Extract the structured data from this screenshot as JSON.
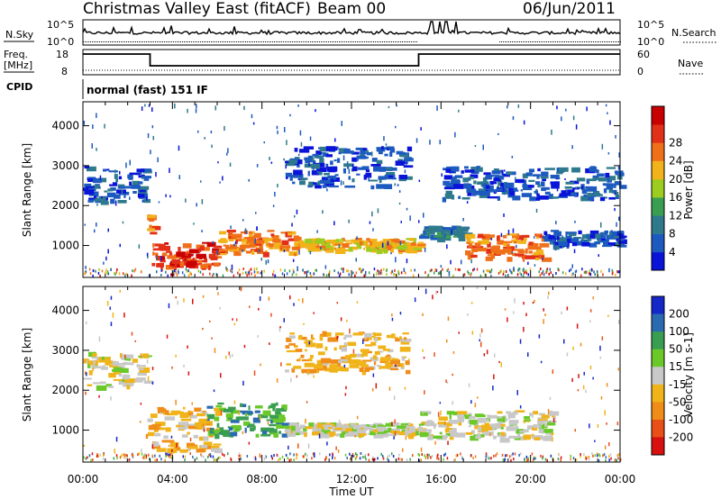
{
  "header": {
    "title": "Christmas Valley East (fitACF)",
    "beam": "Beam 00",
    "date": "06/Jun/2011"
  },
  "nsky_panel": {
    "label": "N.Sky",
    "ytick_top": "10^5",
    "ytick_bottom": "10^0",
    "right_label": "N.Search",
    "right_tick_top": "10^5",
    "right_tick_bottom": "10^0"
  },
  "freq_panel": {
    "label_line1": "Freq.",
    "label_line2": "[MHz]",
    "ytick_top": "18",
    "ytick_bottom": "8",
    "right_label": "Nave",
    "right_tick_top": "60",
    "right_tick_bottom": "0"
  },
  "cpid_panel": {
    "label": "CPID",
    "text": "normal (fast) 151 IF"
  },
  "x_axis": {
    "label": "Time UT",
    "ticks": [
      "00:00",
      "04:00",
      "08:00",
      "12:00",
      "16:00",
      "20:00",
      "00:00"
    ]
  },
  "chart_data": [
    {
      "type": "heatmap",
      "name": "power",
      "ylabel": "Slant Range [km]",
      "yticks": [
        "1000",
        "2000",
        "3000",
        "4000"
      ],
      "ylim": [
        200,
        4600
      ],
      "xlim": [
        0,
        24
      ],
      "colorbar_label": "Power [dB]",
      "colorbar_ticks": [
        "4",
        "8",
        "12",
        "16",
        "20",
        "24",
        "28"
      ],
      "colorbar_colors": [
        "#0a14d8",
        "#1d5abf",
        "#2e7a8c",
        "#3a9e52",
        "#9ccc1f",
        "#f2b21a",
        "#f0701a",
        "#e23018",
        "#c80000"
      ],
      "regions": [
        {
          "t0": 0.0,
          "t1": 2.8,
          "r0": 2100,
          "r1": 3000,
          "level": 1
        },
        {
          "t0": 2.8,
          "t1": 3.2,
          "r0": 1300,
          "r1": 1800,
          "level": 6
        },
        {
          "t0": 3.0,
          "t1": 6.0,
          "r0": 500,
          "r1": 1100,
          "level": 7
        },
        {
          "t0": 6.0,
          "t1": 9.5,
          "r0": 800,
          "r1": 1400,
          "level": 6
        },
        {
          "t0": 9.5,
          "t1": 15.0,
          "r0": 900,
          "r1": 1200,
          "level": 5
        },
        {
          "t0": 15.0,
          "t1": 17.0,
          "r0": 1200,
          "r1": 1500,
          "level": 2
        },
        {
          "t0": 17.0,
          "t1": 20.5,
          "r0": 700,
          "r1": 1300,
          "level": 6
        },
        {
          "t0": 20.5,
          "t1": 24.0,
          "r0": 1000,
          "r1": 1400,
          "level": 1
        },
        {
          "t0": 9.0,
          "t1": 14.5,
          "r0": 2500,
          "r1": 3500,
          "level": 1
        },
        {
          "t0": 16.0,
          "t1": 24.0,
          "r0": 2200,
          "r1": 3000,
          "level": 1
        }
      ]
    },
    {
      "type": "heatmap",
      "name": "velocity",
      "ylabel": "Slant Range [km]",
      "yticks": [
        "1000",
        "2000",
        "3000",
        "4000"
      ],
      "ylim": [
        200,
        4600
      ],
      "xlim": [
        0,
        24
      ],
      "colorbar_label": "Velocity [m s-1]",
      "colorbar_ticks": [
        "200",
        "100",
        "50",
        "15",
        "-15",
        "-50",
        "-100",
        "-200"
      ],
      "colorbar_colors": [
        "#1428c8",
        "#2a6ab0",
        "#3a9e52",
        "#6ac828",
        "#c8c8c8",
        "#f0b41a",
        "#f08c18",
        "#e85018",
        "#d81010"
      ],
      "regions": [
        {
          "t0": 0.0,
          "t1": 2.8,
          "r0": 2100,
          "r1": 3000,
          "level": 4
        },
        {
          "t0": 2.8,
          "t1": 6.0,
          "r0": 500,
          "r1": 1600,
          "level": 5
        },
        {
          "t0": 5.5,
          "t1": 9.0,
          "r0": 900,
          "r1": 1700,
          "level": 2
        },
        {
          "t0": 9.0,
          "t1": 15.0,
          "r0": 900,
          "r1": 1200,
          "level": 4
        },
        {
          "t0": 15.0,
          "t1": 21.0,
          "r0": 800,
          "r1": 1500,
          "level": 4
        },
        {
          "t0": 9.0,
          "t1": 14.5,
          "r0": 2500,
          "r1": 3500,
          "level": 5
        }
      ]
    }
  ]
}
